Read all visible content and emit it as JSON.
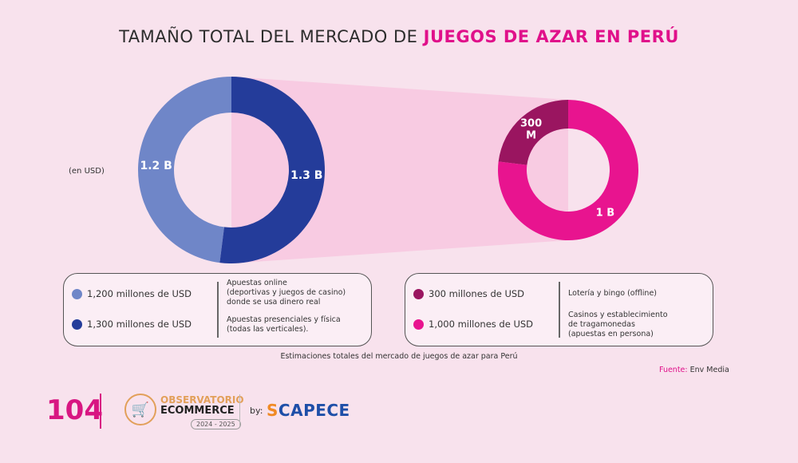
{
  "title": {
    "prefix": "TAMAÑO TOTAL DEL MERCADO DE ",
    "highlight": "JUEGOS DE AZAR EN PERÚ"
  },
  "unit_label": "(en USD)",
  "colors": {
    "online": "#6f86c8",
    "presencial": "#243c9a",
    "loteria": "#9a1560",
    "casinos": "#e8148f",
    "funnel": "#f7c6df",
    "accent": "#e0108a"
  },
  "chart_data": [
    {
      "type": "pie",
      "donut": true,
      "categories": [
        "Apuestas online",
        "Apuestas presenciales y física"
      ],
      "values": [
        1200,
        1300
      ],
      "labels": [
        "1.2 B",
        "1.3 B"
      ],
      "unit": "millones de USD"
    },
    {
      "type": "pie",
      "donut": true,
      "categories": [
        "Lotería y bingo (offline)",
        "Casinos y establecimiento de tragamonedas"
      ],
      "values": [
        300,
        1000
      ],
      "labels": [
        "300 M",
        "1 B"
      ],
      "unit": "millones de USD"
    }
  ],
  "legend_left": [
    {
      "value": "1,200 millones de USD",
      "desc": [
        "Apuestas online",
        "(deportivas y juegos de casino)",
        "donde se usa dinero real"
      ]
    },
    {
      "value": "1,300 millones de USD",
      "desc": [
        "Apuestas presenciales y física",
        "(todas las verticales)."
      ]
    }
  ],
  "legend_right": [
    {
      "value": "300 millones de USD",
      "desc": [
        "Lotería y bingo (offline)"
      ]
    },
    {
      "value": "1,000 millones de USD",
      "desc": [
        "Casinos y establecimiento",
        "de tragamonedas",
        "(apuestas en persona)"
      ]
    }
  ],
  "caption": "Estimaciones totales del mercado de juegos de azar para Perú",
  "source": {
    "label": "Fuente:",
    "value": " Env Media"
  },
  "footer": {
    "page": "104",
    "logo_text": [
      "OBSERVATORIO",
      "ECOMMERCE",
      "2024 - 2025"
    ],
    "by": "by:",
    "partner": "CAPECE"
  }
}
